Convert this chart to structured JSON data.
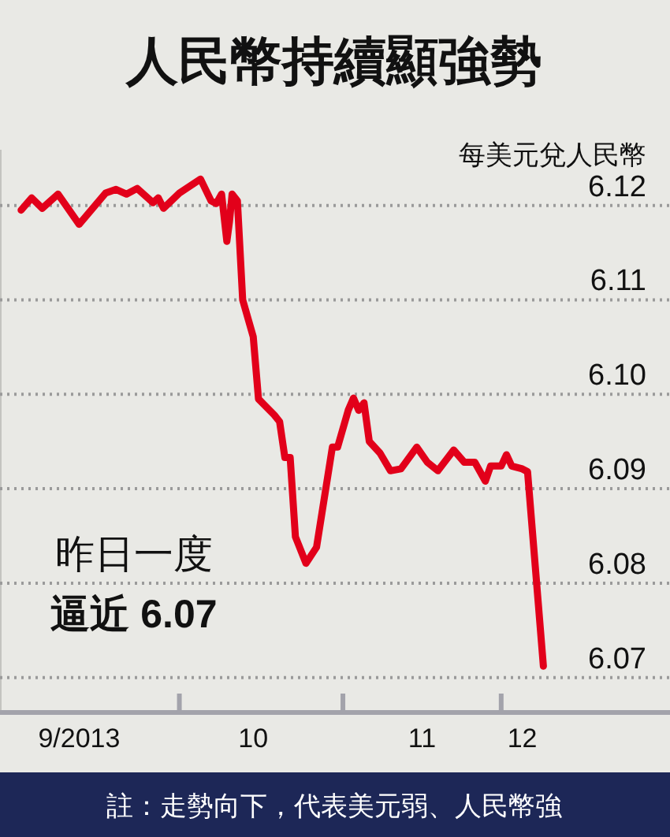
{
  "chart_data": {
    "type": "line",
    "title": "人民幣持續顯強勢",
    "ylabel": "每美元兌人民幣",
    "annotations": [
      "昨日一度",
      "逼近 6.07",
      "註：走勢向下，代表美元弱、人民幣強"
    ],
    "x": [
      "2013-09-01",
      "2013-09-03",
      "2013-09-05",
      "2013-09-08",
      "2013-09-12",
      "2013-09-17",
      "2013-09-19",
      "2013-09-21",
      "2013-09-23",
      "2013-09-26",
      "2013-09-27",
      "2013-09-28",
      "2013-10-01",
      "2013-10-05",
      "2013-10-07",
      "2013-10-08",
      "2013-10-09",
      "2013-10-10",
      "2013-10-10T12:00",
      "2013-10-11",
      "2013-10-12",
      "2013-10-13",
      "2013-10-15",
      "2013-10-16",
      "2013-10-19",
      "2013-10-20",
      "2013-10-21",
      "2013-10-22",
      "2013-10-23",
      "2013-10-25",
      "2013-10-27",
      "2013-10-30",
      "2013-10-31",
      "2013-11-02",
      "2013-11-03",
      "2013-11-04",
      "2013-11-05",
      "2013-11-06",
      "2013-11-08",
      "2013-11-10",
      "2013-11-12",
      "2013-11-15",
      "2013-11-17",
      "2013-11-19",
      "2013-11-22",
      "2013-11-24",
      "2013-11-26",
      "2013-11-28",
      "2013-11-29",
      "2013-12-01",
      "2013-12-02",
      "2013-12-03",
      "2013-12-05",
      "2013-12-06",
      "2013-12-09"
    ],
    "series": [
      {
        "color": "#e2001a",
        "values": [
          6.1195,
          6.1208,
          6.1197,
          6.1212,
          6.118,
          6.1213,
          6.1217,
          6.1212,
          6.1218,
          6.1203,
          6.1208,
          6.1197,
          6.1213,
          6.1228,
          6.1205,
          6.1202,
          6.1212,
          6.1162,
          6.1183,
          6.1212,
          6.1205,
          6.11,
          6.1061,
          6.0995,
          6.0978,
          6.0971,
          6.0933,
          6.0933,
          6.0849,
          6.0821,
          6.0838,
          6.0944,
          6.0944,
          6.0983,
          6.0996,
          6.0983,
          6.0991,
          6.095,
          6.0938,
          6.0919,
          6.0921,
          6.0944,
          6.0928,
          6.0919,
          6.0941,
          6.0928,
          6.0928,
          6.0908,
          6.0924,
          6.0924,
          6.0936,
          6.0924,
          6.0921,
          6.0918,
          6.0712
        ]
      }
    ],
    "xlim": [
      "2013-08-28",
      "2014-01-02"
    ],
    "xticks": [
      {
        "value": "2013-09-12",
        "label": "9/2013"
      },
      {
        "value": "2013-10-01",
        "label": null
      },
      {
        "value": "2013-10-15",
        "label": "10"
      },
      {
        "value": "2013-11-01",
        "label": null
      },
      {
        "value": "2013-11-16",
        "label": "11"
      },
      {
        "value": "2013-12-01",
        "label": null
      },
      {
        "value": "2013-12-05",
        "label": "12"
      }
    ],
    "ylim": [
      6.0663,
      6.1259
    ],
    "yticks": [
      6.07,
      6.08,
      6.09,
      {
        "value": 6.1,
        "label": "6.10"
      },
      6.11,
      6.12
    ],
    "grid": "y"
  }
}
